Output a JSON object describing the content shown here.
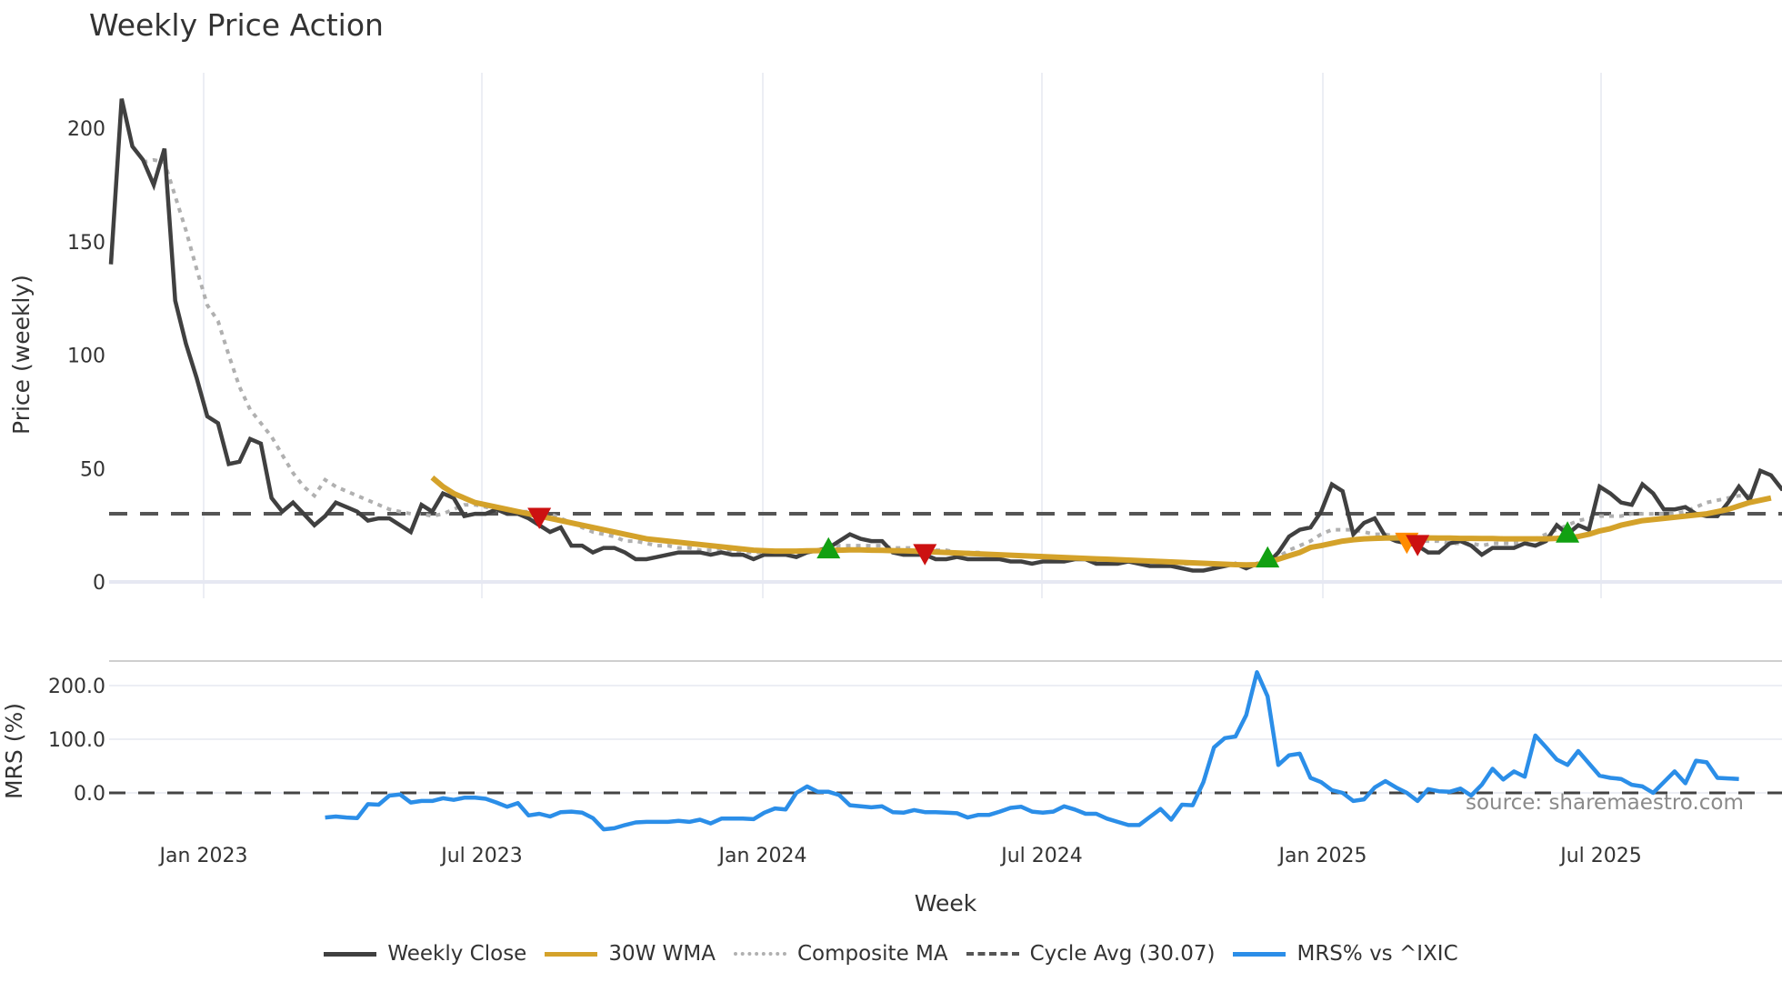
{
  "title": "Weekly Price Action",
  "colors": {
    "close": "#404040",
    "wma": "#d4a22a",
    "composite": "#b0b0b0",
    "cycle": "#555555",
    "mrs": "#2b8ee8",
    "buy": "#12a012",
    "sell": "#cc1111",
    "warn": "#ff8c00",
    "grid": "#eceef4"
  },
  "legend": [
    {
      "key": "close",
      "label": "Weekly Close",
      "style": "solid"
    },
    {
      "key": "wma",
      "label": "30W WMA",
      "style": "solid"
    },
    {
      "key": "composite",
      "label": "Composite MA",
      "style": "dotted"
    },
    {
      "key": "cycle",
      "label": "Cycle Avg (30.07)",
      "style": "dashed"
    },
    {
      "key": "mrs",
      "label": "MRS% vs ^IXIC",
      "style": "solid"
    }
  ],
  "source_note": "source: sharemaestro.com",
  "chart_data": [
    {
      "type": "line",
      "title": "Weekly Price Action",
      "xlabel": "Week",
      "ylabel": "Price (weekly)",
      "ylim": [
        -5,
        222
      ],
      "yticks": [
        0,
        50,
        100,
        150,
        200
      ],
      "xticks": [
        "Jan 2023",
        "Jul 2023",
        "Jan 2024",
        "Jul 2024",
        "Jan 2025",
        "Jul 2025"
      ],
      "grid": true,
      "legend_position": "bottom",
      "cycle_avg": 30.07,
      "series": [
        {
          "name": "Weekly Close",
          "start_week_index": 0,
          "values": [
            140,
            213,
            192,
            186,
            175,
            191,
            124,
            105,
            90,
            73,
            70,
            52,
            53,
            63,
            61,
            37,
            31,
            35,
            30,
            25,
            29,
            35,
            33,
            31,
            27,
            28,
            28,
            25,
            22,
            34,
            31,
            39,
            37,
            29,
            30,
            30,
            32,
            30,
            30,
            28,
            25,
            22,
            24,
            16,
            16,
            13,
            15,
            15,
            13,
            10,
            10,
            11,
            12,
            13,
            13,
            13,
            12,
            13,
            12,
            12,
            10,
            12,
            12,
            12,
            11,
            13,
            14,
            15,
            18,
            21,
            19,
            18,
            18,
            13,
            12,
            12,
            12,
            10,
            10,
            11,
            10,
            10,
            10,
            10,
            9,
            9,
            8,
            9,
            9,
            9,
            10,
            10,
            8,
            8,
            8,
            9,
            8,
            7,
            7,
            7,
            6,
            5,
            5,
            6,
            7,
            8,
            6,
            8,
            8,
            13,
            20,
            23,
            24,
            31,
            43,
            40,
            21,
            26,
            28,
            20,
            18,
            17,
            16,
            13,
            13,
            17,
            18,
            16,
            12,
            15,
            15,
            15,
            17,
            16,
            18,
            25,
            21,
            25,
            23,
            42,
            39,
            35,
            34,
            43,
            39,
            32,
            32,
            33,
            30,
            29,
            29,
            35,
            42,
            36,
            49,
            47,
            41,
            42,
            43
          ]
        },
        {
          "name": "30W WMA",
          "start_week_index": 30,
          "values": [
            46,
            42,
            39,
            37,
            35,
            34,
            33,
            32,
            31,
            30,
            29,
            28,
            27,
            26,
            25,
            24,
            23,
            22,
            21,
            20,
            19,
            18.5,
            18,
            17.5,
            17,
            16.5,
            16,
            15.5,
            15,
            14.5,
            14,
            13.8,
            13.6,
            13.6,
            13.6,
            13.7,
            13.8,
            13.9,
            14,
            14.1,
            14.1,
            14,
            13.9,
            13.8,
            13.7,
            13.6,
            13.4,
            13.2,
            13,
            12.8,
            12.6,
            12.4,
            12.2,
            12,
            11.8,
            11.6,
            11.4,
            11.2,
            11,
            10.8,
            10.6,
            10.4,
            10.2,
            10,
            9.8,
            9.6,
            9.4,
            9.2,
            9,
            8.8,
            8.6,
            8.4,
            8.2,
            8,
            7.8,
            7.6,
            7.5,
            7.6,
            8.5,
            10,
            11.5,
            13,
            15.2,
            16,
            17,
            18,
            18.6,
            19,
            19.2,
            19.3,
            19.4,
            19.4,
            19.4,
            19.4,
            19.3,
            19.3,
            19.2,
            19.2,
            19.1,
            19.1,
            19,
            19,
            19,
            19,
            19,
            19.2,
            19.5,
            20,
            21,
            22.5,
            23.5,
            25,
            26,
            27,
            27.5,
            28,
            28.5,
            29,
            29.5,
            30,
            31,
            32,
            33.5,
            35,
            36,
            37
          ]
        },
        {
          "name": "Composite MA",
          "start_week_index": 3,
          "values": [
            185,
            186,
            185,
            170,
            155,
            138,
            122,
            115,
            100,
            86,
            76,
            70,
            64,
            56,
            48,
            42,
            38,
            45,
            42,
            40,
            38,
            36,
            34,
            32,
            31,
            30,
            30,
            29,
            30,
            32,
            34,
            34,
            33,
            32,
            31,
            31,
            31,
            30,
            30,
            28,
            26,
            24,
            22,
            21,
            20,
            18,
            18,
            17,
            16,
            16,
            15,
            15,
            14,
            14,
            14,
            14,
            13,
            13,
            13,
            13,
            13,
            13,
            14,
            14,
            15,
            16,
            16,
            16,
            16,
            16,
            15,
            15,
            15,
            14,
            14,
            14,
            13,
            13,
            13,
            12,
            12,
            12,
            12,
            11,
            11,
            11,
            11,
            10,
            10,
            10,
            10,
            10,
            9,
            9,
            9,
            9,
            9,
            8,
            8,
            8,
            8,
            8,
            8,
            7,
            8,
            9,
            11,
            14,
            16,
            18,
            21,
            23,
            23,
            23,
            22,
            21,
            21,
            20,
            19,
            18,
            18,
            18,
            17,
            17,
            17,
            16,
            17,
            17,
            17,
            18,
            19,
            21,
            23,
            25,
            27,
            28,
            29,
            29,
            29,
            30,
            30,
            30,
            30,
            30,
            31,
            33,
            35,
            36,
            37,
            38,
            38
          ]
        }
      ],
      "markers": [
        {
          "type": "sell",
          "shape": "triangle-down",
          "week_index": 40,
          "value": 28
        },
        {
          "type": "buy",
          "shape": "triangle-up",
          "week_index": 67,
          "value": 14
        },
        {
          "type": "sell",
          "shape": "triangle-down",
          "week_index": 76,
          "value": 12
        },
        {
          "type": "buy",
          "shape": "triangle-up",
          "week_index": 108,
          "value": 10
        },
        {
          "type": "warn",
          "shape": "triangle-down",
          "week_index": 121,
          "value": 17
        },
        {
          "type": "sell",
          "shape": "triangle-down",
          "week_index": 122,
          "value": 16
        },
        {
          "type": "buy",
          "shape": "triangle-up",
          "week_index": 136,
          "value": 21
        }
      ]
    },
    {
      "type": "line",
      "title": "",
      "xlabel": "Week",
      "ylabel": "MRS (%)",
      "ylim": [
        -70,
        245
      ],
      "yticks": [
        "0.0",
        "100.0",
        "200.0"
      ],
      "grid": true,
      "series": [
        {
          "name": "MRS% vs ^IXIC",
          "start_week_index": 20,
          "values": [
            -46,
            -44,
            -46,
            -47,
            -21,
            -22,
            -5,
            -3,
            -18,
            -15,
            -15,
            -10,
            -13,
            -9,
            -9,
            -11,
            -18,
            -26,
            -19,
            -42,
            -39,
            -44,
            -36,
            -35,
            -37,
            -47,
            -68,
            -66,
            -60,
            -55,
            -54,
            -54,
            -54,
            -52,
            -54,
            -50,
            -57,
            -48,
            -48,
            -48,
            -49,
            -37,
            -29,
            -31,
            0,
            12,
            2,
            2,
            -4,
            -23,
            -25,
            -27,
            -25,
            -36,
            -37,
            -32,
            -36,
            -36,
            -37,
            -38,
            -46,
            -41,
            -41,
            -35,
            -28,
            -26,
            -35,
            -37,
            -35,
            -25,
            -31,
            -39,
            -39,
            -48,
            -54,
            -60,
            -60,
            -45,
            -30,
            -50,
            -22,
            -23,
            20,
            85,
            102,
            105,
            145,
            225,
            180,
            52,
            70,
            73,
            28,
            20,
            5,
            0,
            -15,
            -12,
            10,
            22,
            10,
            0,
            -15,
            7,
            3,
            2,
            8,
            -5,
            15,
            45,
            25,
            40,
            30,
            107,
            85,
            62,
            52,
            78,
            55,
            32,
            28,
            26,
            15,
            12,
            0,
            20,
            40,
            18,
            60,
            57,
            28,
            27,
            26
          ]
        }
      ]
    }
  ],
  "axes": {
    "price": {
      "title": "Price (weekly)",
      "ticks": [
        "200",
        "150",
        "100",
        "50",
        "0"
      ]
    },
    "mrs": {
      "title": "MRS (%)",
      "ticks": [
        "200.0",
        "100.0",
        "0.0"
      ]
    },
    "x": {
      "title": "Week",
      "ticks": [
        "Jan 2023",
        "Jul 2023",
        "Jan 2024",
        "Jul 2024",
        "Jan 2025",
        "Jul 2025"
      ]
    }
  }
}
